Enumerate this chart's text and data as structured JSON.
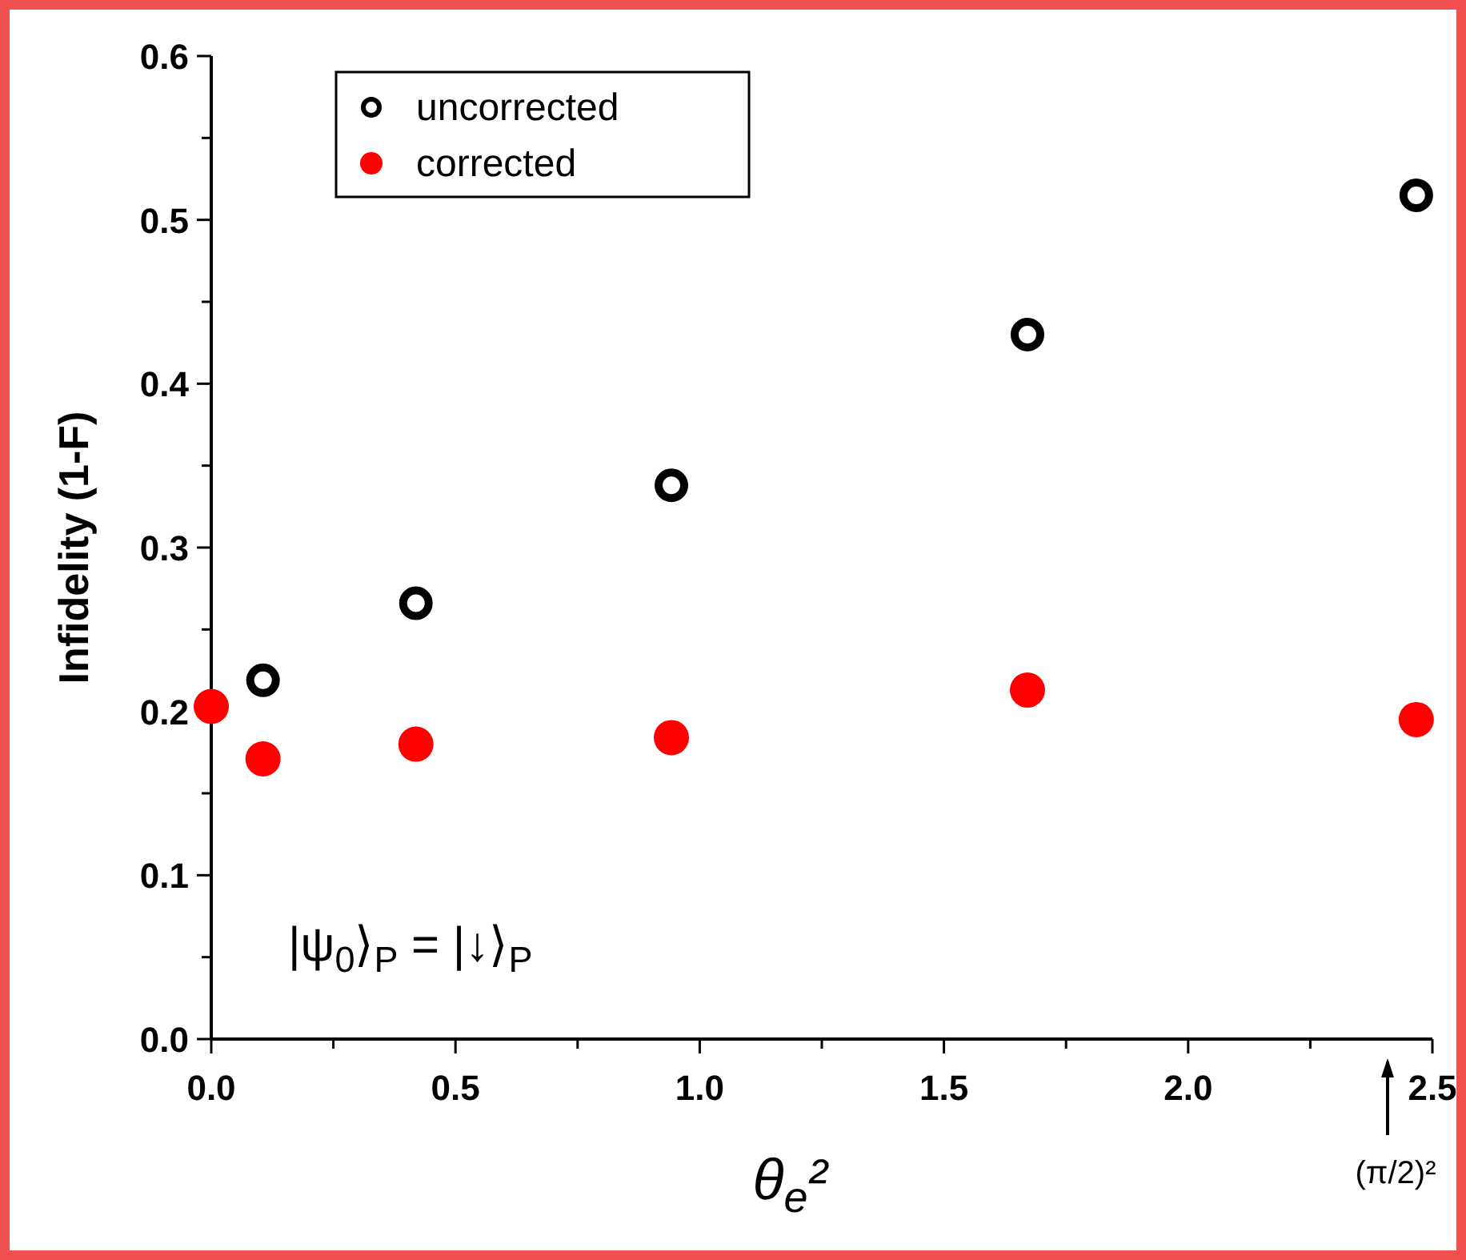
{
  "chart_data": {
    "type": "scatter",
    "xlabel": "θ$_{e}$²",
    "ylabel": "Infidelity (1-F)",
    "xlim": [
      0,
      2.5
    ],
    "ylim": [
      0,
      0.6
    ],
    "xticks": [
      {
        "value": 0,
        "label": "0.0"
      },
      {
        "value": 0.25,
        "label": null
      },
      {
        "value": 0.5,
        "label": "0.5"
      },
      {
        "value": 0.75,
        "label": null
      },
      {
        "value": 1,
        "label": "1.0"
      },
      {
        "value": 1.25,
        "label": null
      },
      {
        "value": 1.5,
        "label": "1.5"
      },
      {
        "value": 1.75,
        "label": null
      },
      {
        "value": 2,
        "label": "2.0"
      },
      {
        "value": 2.25,
        "label": null
      },
      {
        "value": 2.5,
        "label": "2.5"
      }
    ],
    "yticks": [
      {
        "value": 0,
        "label": "0.0"
      },
      {
        "value": 0.05,
        "label": null
      },
      {
        "value": 0.1,
        "label": "0.1"
      },
      {
        "value": 0.15,
        "label": null
      },
      {
        "value": 0.2,
        "label": "0.2"
      },
      {
        "value": 0.25,
        "label": null
      },
      {
        "value": 0.3,
        "label": "0.3"
      },
      {
        "value": 0.35,
        "label": null
      },
      {
        "value": 0.4,
        "label": "0.4"
      },
      {
        "value": 0.45,
        "label": null
      },
      {
        "value": 0.5,
        "label": "0.5"
      },
      {
        "value": 0.55,
        "label": null
      },
      {
        "value": 0.6,
        "label": "0.6"
      }
    ],
    "series": [
      {
        "name": "uncorrected",
        "color": "#000000",
        "x": [
          0.106,
          0.419,
          0.942,
          1.671,
          2.467
        ],
        "values": [
          0.219,
          0.266,
          0.338,
          0.43,
          0.515
        ]
      },
      {
        "name": "corrected",
        "color": "#ff0000",
        "x": [
          0,
          0.106,
          0.419,
          0.942,
          1.671,
          2.467
        ],
        "values": [
          0.203,
          0.171,
          0.18,
          0.184,
          0.213,
          0.195
        ]
      }
    ],
    "marker": "circle",
    "legend": "top left",
    "grid": false,
    "annotations": [
      "|ψ$_{0}$⟩$_{P}$ = |↓⟩$_{P}$",
      "(π/2)²"
    ]
  }
}
